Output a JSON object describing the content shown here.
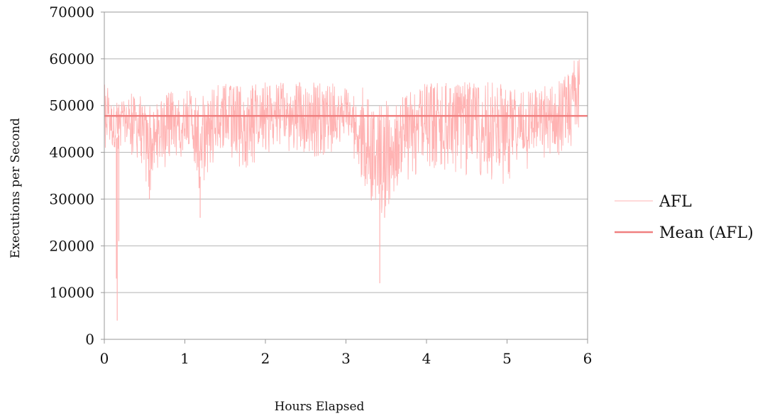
{
  "chart_data": {
    "type": "line",
    "title": "",
    "xlabel": "Hours Elapsed",
    "ylabel": "Executions per Second",
    "xlim": [
      0,
      6
    ],
    "ylim": [
      0,
      70000
    ],
    "x_ticks": [
      "0",
      "1",
      "2",
      "3",
      "4",
      "5",
      "6"
    ],
    "y_ticks": [
      "0",
      "10000",
      "20000",
      "30000",
      "40000",
      "50000",
      "60000",
      "70000"
    ],
    "grid": "horizontal",
    "legend_position": "right",
    "series": [
      {
        "name": "AFL",
        "color": "#ffb3b3",
        "style": "noisy-band",
        "x": [
          0.0,
          0.05,
          0.1,
          0.2,
          0.3,
          0.4,
          0.5,
          0.6,
          0.7,
          0.8,
          0.9,
          1.0,
          1.1,
          1.2,
          1.3,
          1.5,
          1.7,
          2.0,
          2.3,
          2.6,
          2.9,
          3.0,
          3.1,
          3.2,
          3.3,
          3.4,
          3.5,
          3.6,
          3.7,
          3.8,
          3.9,
          4.0,
          4.3,
          4.6,
          4.9,
          5.0,
          5.2,
          5.4,
          5.6,
          5.75,
          5.85,
          5.9
        ],
        "high": [
          57000,
          54000,
          52000,
          51000,
          52000,
          54000,
          51000,
          50000,
          51000,
          53000,
          53000,
          54000,
          53000,
          52000,
          54000,
          55000,
          54000,
          55000,
          55000,
          55000,
          55000,
          54000,
          52000,
          54000,
          52000,
          51000,
          51000,
          50000,
          52000,
          53000,
          54000,
          55000,
          55000,
          55000,
          55000,
          54000,
          54000,
          54000,
          55000,
          57000,
          61000,
          63000
        ],
        "low": [
          37000,
          44000,
          38000,
          40000,
          40000,
          38000,
          34000,
          31000,
          35000,
          38000,
          38000,
          40000,
          38000,
          30000,
          36000,
          38000,
          36000,
          39000,
          40000,
          39000,
          40000,
          42000,
          38000,
          34000,
          30000,
          26000,
          27000,
          30000,
          32000,
          34000,
          35000,
          36000,
          36000,
          34000,
          33000,
          33000,
          36000,
          37000,
          38000,
          38000,
          40000,
          45000
        ],
        "spikes": [
          {
            "x": 0.15,
            "y": 13000
          },
          {
            "x": 0.16,
            "y": 4000
          },
          {
            "x": 0.18,
            "y": 21000
          },
          {
            "x": 1.19,
            "y": 26000
          },
          {
            "x": 3.42,
            "y": 12000
          },
          {
            "x": 3.48,
            "y": 26000
          },
          {
            "x": 0.56,
            "y": 30000
          }
        ]
      },
      {
        "name": "Mean (AFL)",
        "color": "#f08080",
        "x": [
          0,
          6
        ],
        "values": [
          47800,
          47800
        ]
      }
    ]
  }
}
